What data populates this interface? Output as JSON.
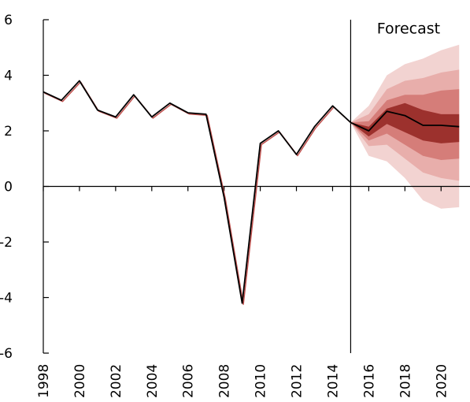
{
  "chart_data": {
    "type": "line",
    "title": "",
    "xlabel": "",
    "ylabel": "",
    "xlim": [
      1998,
      2021.6
    ],
    "ylim": [
      -6,
      6
    ],
    "yticks": [
      6,
      4,
      2,
      0,
      -2,
      -4,
      -6
    ],
    "ytick_labels": [
      "6",
      "4",
      "2",
      "0",
      "-2",
      "-4",
      "-6"
    ],
    "xticks": [
      1998,
      2000,
      2002,
      2004,
      2006,
      2008,
      2010,
      2012,
      2014,
      2016,
      2018,
      2020
    ],
    "xtick_labels": [
      "1998",
      "2000",
      "2002",
      "2004",
      "2006",
      "2008",
      "2010",
      "2012",
      "2014",
      "2016",
      "2018",
      "2020"
    ],
    "grid": false,
    "legend": "none",
    "annotations": [
      {
        "text": "Forecast",
        "x": 2018.2,
        "y": 5.7
      }
    ],
    "forecast_start": 2015,
    "colors": {
      "line": "#000000",
      "history_shadow": "#c0504d",
      "band_outer": "#f2d3d1",
      "band_3": "#e8aeab",
      "band_2": "#d57d79",
      "band_inner": "#9c312d"
    },
    "series": [
      {
        "x": [
          1998,
          1999,
          2000,
          2001,
          2002,
          2003,
          2004,
          2005,
          2006,
          2007,
          2008,
          2009,
          2010,
          2011,
          2012,
          2013,
          2014,
          2015,
          2016,
          2017,
          2018,
          2019,
          2020,
          2021
        ],
        "values": [
          3.4,
          3.1,
          3.8,
          2.75,
          2.5,
          3.3,
          2.5,
          3.0,
          2.65,
          2.6,
          -0.4,
          -4.2,
          1.55,
          2.0,
          1.15,
          2.15,
          2.9,
          2.3,
          2.0,
          2.7,
          2.55,
          2.2,
          2.2,
          2.15
        ]
      }
    ],
    "fan_bands": {
      "x": [
        2015,
        2016,
        2017,
        2018,
        2019,
        2020,
        2021
      ],
      "bands": [
        {
          "lower": [
            2.3,
            1.1,
            0.9,
            0.3,
            -0.5,
            -0.8,
            -0.75
          ],
          "upper": [
            2.3,
            2.9,
            4.0,
            4.4,
            4.6,
            4.9,
            5.1
          ]
        },
        {
          "lower": [
            2.3,
            1.45,
            1.5,
            1.0,
            0.5,
            0.3,
            0.2
          ],
          "upper": [
            2.3,
            2.6,
            3.5,
            3.8,
            3.9,
            4.1,
            4.2
          ]
        },
        {
          "lower": [
            2.3,
            1.65,
            1.9,
            1.5,
            1.1,
            0.95,
            1.0
          ],
          "upper": [
            2.3,
            2.35,
            3.1,
            3.3,
            3.3,
            3.45,
            3.5
          ]
        },
        {
          "lower": [
            2.3,
            1.8,
            2.25,
            1.95,
            1.65,
            1.55,
            1.6
          ],
          "upper": [
            2.3,
            2.15,
            2.8,
            3.0,
            2.75,
            2.6,
            2.6
          ]
        }
      ]
    }
  }
}
